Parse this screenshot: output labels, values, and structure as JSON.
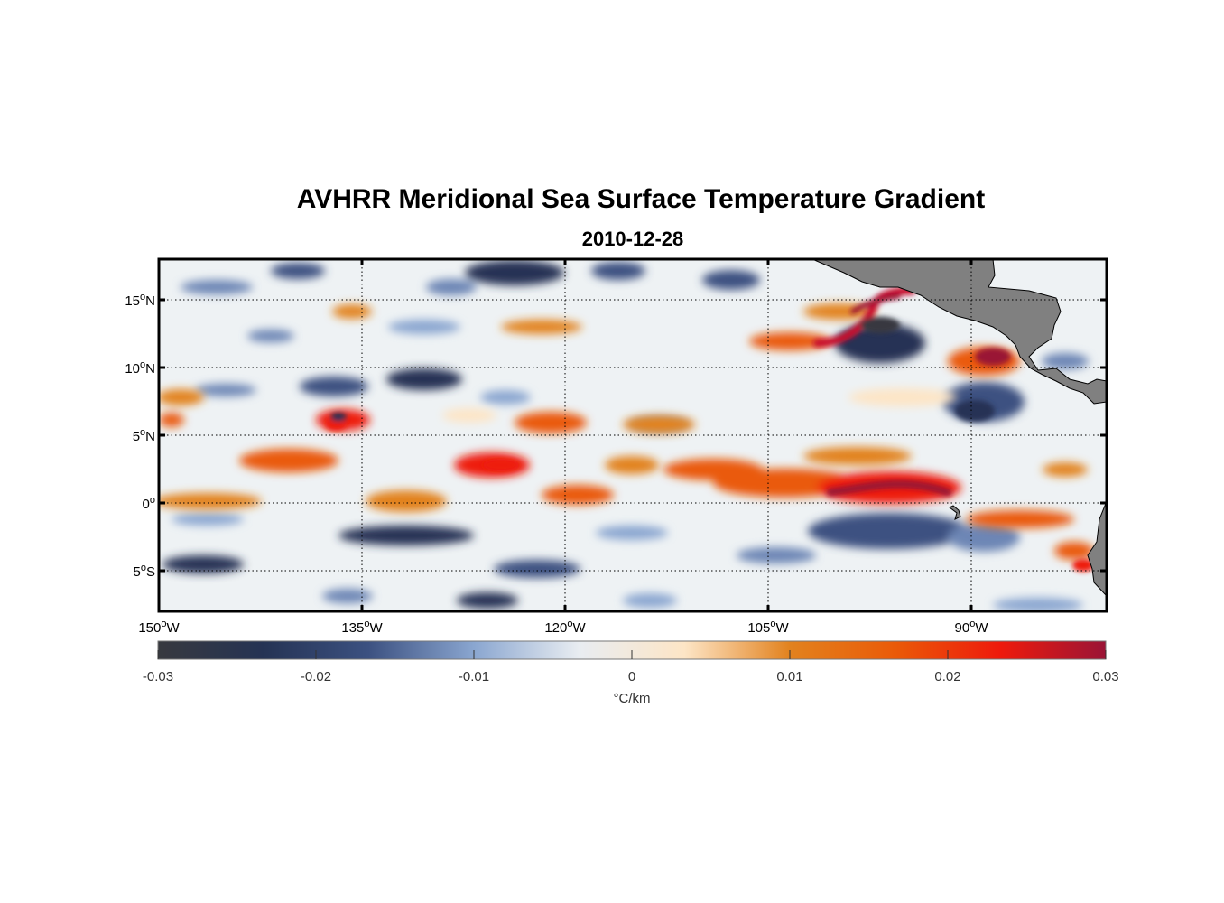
{
  "title": "AVHRR Meridional Sea Surface Temperature Gradient",
  "subtitle": "2010-12-28",
  "map": {
    "lon_range": [
      -150,
      -80
    ],
    "lat_range": [
      -8,
      18
    ],
    "lat_ticks": [
      {
        "value": 15,
        "num": "15",
        "hem": "N"
      },
      {
        "value": 10,
        "num": "10",
        "hem": "N"
      },
      {
        "value": 5,
        "num": "5",
        "hem": "N"
      },
      {
        "value": 0,
        "num": "0",
        "hem": ""
      },
      {
        "value": -5,
        "num": "5",
        "hem": "S"
      }
    ],
    "lon_ticks": [
      {
        "value": -150,
        "num": "150",
        "hem": "W"
      },
      {
        "value": -135,
        "num": "135",
        "hem": "W"
      },
      {
        "value": -120,
        "num": "120",
        "hem": "W"
      },
      {
        "value": -105,
        "num": "105",
        "hem": "W"
      },
      {
        "value": -90,
        "num": "90",
        "hem": "W"
      }
    ],
    "land_color": "#808080",
    "grid": "dotted"
  },
  "colorbar": {
    "ticks": [
      "-0.03",
      "-0.02",
      "-0.01",
      "0",
      "0.01",
      "0.02",
      "0.03"
    ],
    "range": [
      -0.03,
      0.03
    ],
    "unit": "°C/km",
    "colors": [
      "#37393f",
      "#253354",
      "#3c5181",
      "#8aa6d0",
      "#e9edf1",
      "#fde5c6",
      "#e2821e",
      "#ea5a08",
      "#ee1a0c",
      "#9a1436"
    ]
  }
}
